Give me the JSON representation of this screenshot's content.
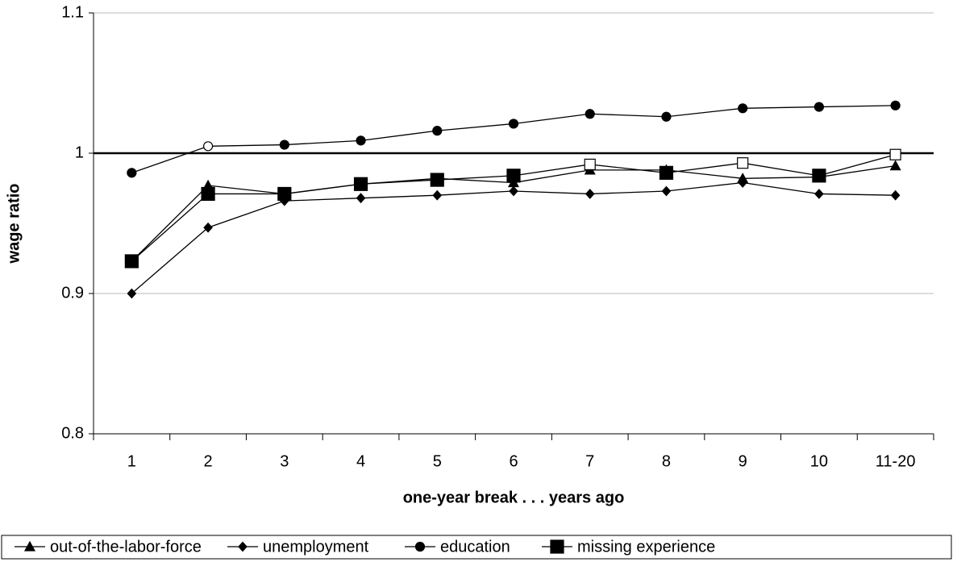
{
  "chart_data": {
    "type": "line",
    "x_label": "one-year break . . . years ago",
    "y_label": "wage ratio",
    "categories": [
      "1",
      "2",
      "3",
      "4",
      "5",
      "6",
      "7",
      "8",
      "9",
      "10",
      "11-20"
    ],
    "ylim": [
      0.8,
      1.1
    ],
    "yticks": [
      0.8,
      0.9,
      1,
      1.1
    ],
    "grid": true,
    "reference_line": 1,
    "legend": "bottom",
    "series": [
      {
        "name": "out-of-the-labor-force",
        "color": "#000000",
        "marker": "triangle",
        "values": [
          0.923,
          0.977,
          0.971,
          0.978,
          0.982,
          0.979,
          0.988,
          0.988,
          0.982,
          0.983,
          0.991
        ],
        "marker_fill": [
          "filled",
          "filled",
          "filled",
          "filled",
          "filled",
          "filled",
          "filled",
          "filled",
          "filled",
          "filled",
          "filled"
        ]
      },
      {
        "name": "unemployment",
        "color": "#000000",
        "marker": "diamond",
        "values": [
          0.9,
          0.947,
          0.966,
          0.968,
          0.97,
          0.973,
          0.971,
          0.973,
          0.979,
          0.971,
          0.97
        ],
        "marker_fill": [
          "filled",
          "filled",
          "filled",
          "filled",
          "filled",
          "filled",
          "filled",
          "filled",
          "filled",
          "filled",
          "filled"
        ]
      },
      {
        "name": "education",
        "color": "#000000",
        "marker": "circle",
        "values": [
          0.986,
          1.005,
          1.006,
          1.009,
          1.016,
          1.021,
          1.028,
          1.026,
          1.032,
          1.033,
          1.034
        ],
        "marker_fill": [
          "filled",
          "open",
          "filled",
          "filled",
          "filled",
          "filled",
          "filled",
          "filled",
          "filled",
          "filled",
          "filled"
        ]
      },
      {
        "name": "missing experience",
        "color": "#000000",
        "marker": "square",
        "values": [
          0.923,
          0.971,
          0.971,
          0.978,
          0.981,
          0.984,
          0.992,
          0.986,
          0.993,
          0.984,
          0.999
        ],
        "marker_fill": [
          "filled",
          "filled",
          "filled",
          "filled",
          "filled",
          "filled",
          "open",
          "filled",
          "open",
          "filled",
          "open"
        ]
      }
    ]
  }
}
